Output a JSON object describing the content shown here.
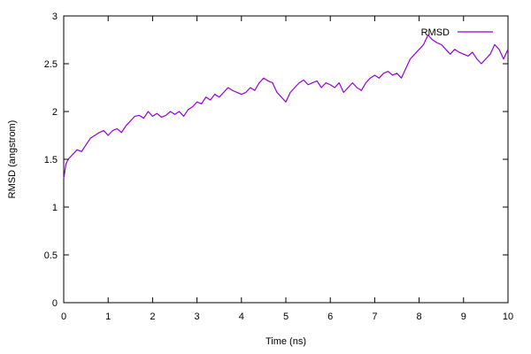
{
  "chart_data": {
    "type": "line",
    "title": "",
    "xlabel": "Time (ns)",
    "ylabel": "RMSD (angstrom)",
    "xlim": [
      0,
      10
    ],
    "ylim": [
      0,
      3
    ],
    "xticks": [
      0,
      1,
      2,
      3,
      4,
      5,
      6,
      7,
      8,
      9,
      10
    ],
    "yticks": [
      0,
      0.5,
      1,
      1.5,
      2,
      2.5,
      3
    ],
    "xtick_labels": [
      "0",
      "1",
      "2",
      "3",
      "4",
      "5",
      "6",
      "7",
      "8",
      "9",
      "10"
    ],
    "ytick_labels": [
      "0",
      "0.5",
      "1",
      "1.5",
      "2",
      "2.5",
      "3"
    ],
    "grid": false,
    "legend": {
      "position": "top-right",
      "entries": [
        "RMSD"
      ]
    },
    "series": [
      {
        "name": "RMSD",
        "color": "#9400d3",
        "x": [
          0,
          0.05,
          0.1,
          0.2,
          0.3,
          0.4,
          0.5,
          0.6,
          0.7,
          0.8,
          0.9,
          1.0,
          1.1,
          1.2,
          1.3,
          1.4,
          1.5,
          1.6,
          1.7,
          1.8,
          1.9,
          2.0,
          2.1,
          2.2,
          2.3,
          2.4,
          2.5,
          2.6,
          2.7,
          2.8,
          2.9,
          3.0,
          3.1,
          3.2,
          3.3,
          3.4,
          3.5,
          3.6,
          3.7,
          3.8,
          3.9,
          4.0,
          4.1,
          4.2,
          4.3,
          4.4,
          4.5,
          4.6,
          4.7,
          4.8,
          4.9,
          5.0,
          5.1,
          5.2,
          5.3,
          5.4,
          5.5,
          5.6,
          5.7,
          5.8,
          5.9,
          6.0,
          6.1,
          6.2,
          6.3,
          6.4,
          6.5,
          6.6,
          6.7,
          6.8,
          6.9,
          7.0,
          7.1,
          7.2,
          7.3,
          7.4,
          7.5,
          7.6,
          7.7,
          7.8,
          7.9,
          8.0,
          8.1,
          8.2,
          8.3,
          8.4,
          8.5,
          8.6,
          8.7,
          8.8,
          8.9,
          9.0,
          9.1,
          9.2,
          9.3,
          9.4,
          9.5,
          9.6,
          9.7,
          9.8,
          9.9,
          10.0
        ],
        "y": [
          1.3,
          1.45,
          1.5,
          1.55,
          1.6,
          1.58,
          1.65,
          1.72,
          1.75,
          1.78,
          1.8,
          1.75,
          1.8,
          1.82,
          1.78,
          1.85,
          1.9,
          1.95,
          1.96,
          1.93,
          2.0,
          1.95,
          1.98,
          1.94,
          1.96,
          2.0,
          1.97,
          2.0,
          1.95,
          2.02,
          2.05,
          2.1,
          2.08,
          2.15,
          2.12,
          2.18,
          2.15,
          2.2,
          2.25,
          2.22,
          2.2,
          2.18,
          2.2,
          2.25,
          2.22,
          2.3,
          2.35,
          2.32,
          2.3,
          2.2,
          2.15,
          2.1,
          2.2,
          2.25,
          2.3,
          2.33,
          2.28,
          2.3,
          2.32,
          2.25,
          2.3,
          2.28,
          2.25,
          2.3,
          2.2,
          2.25,
          2.3,
          2.25,
          2.22,
          2.3,
          2.35,
          2.38,
          2.35,
          2.4,
          2.42,
          2.38,
          2.4,
          2.35,
          2.45,
          2.55,
          2.6,
          2.65,
          2.7,
          2.8,
          2.75,
          2.72,
          2.7,
          2.65,
          2.6,
          2.65,
          2.62,
          2.6,
          2.58,
          2.62,
          2.55,
          2.5,
          2.55,
          2.6,
          2.7,
          2.65,
          2.55,
          2.65
        ]
      }
    ]
  }
}
